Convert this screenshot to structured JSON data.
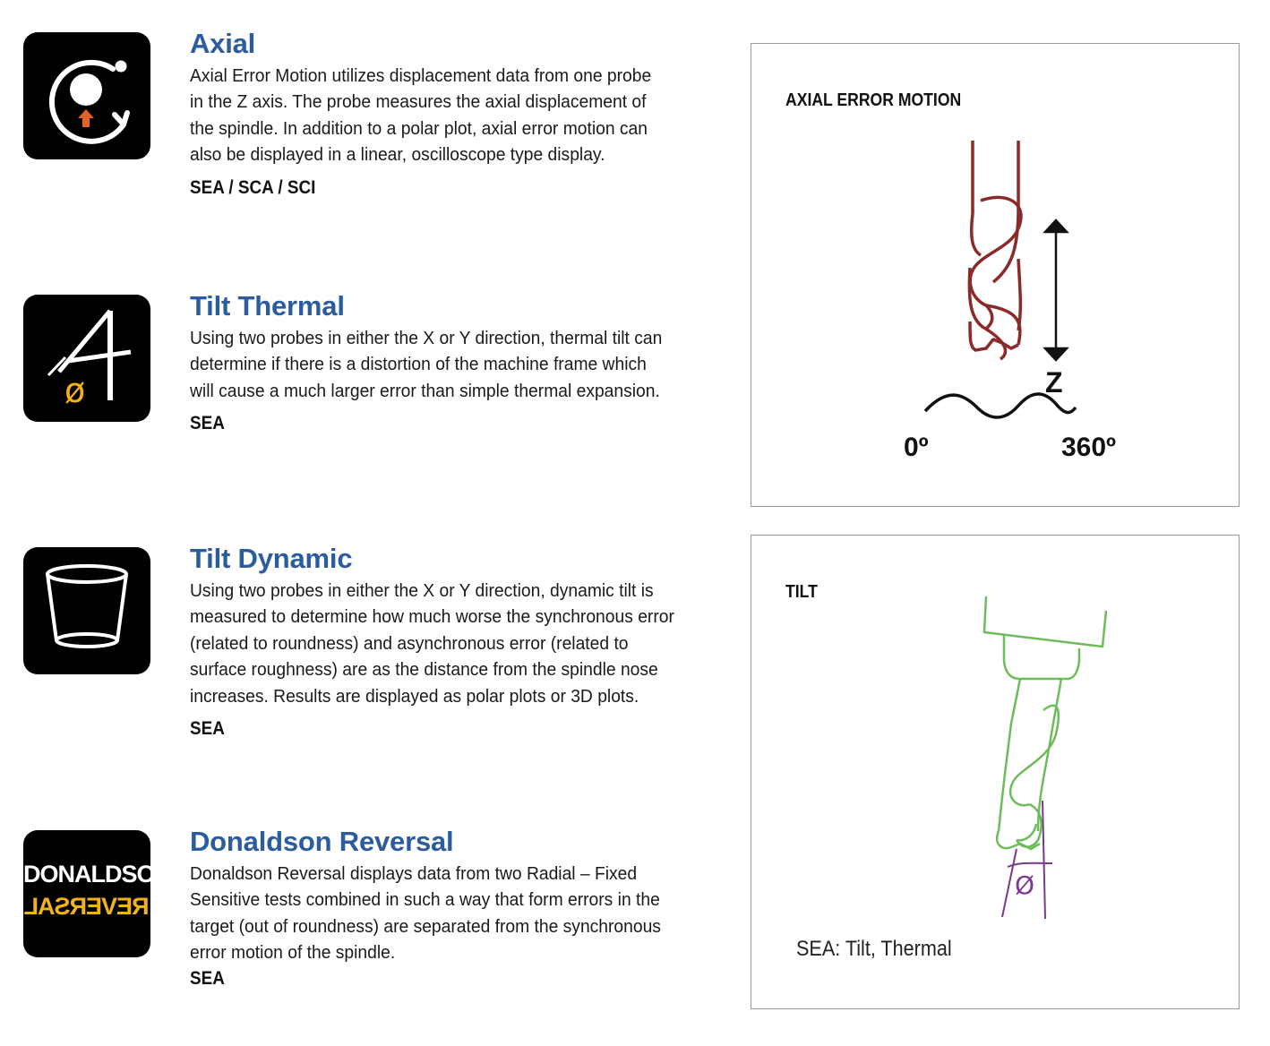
{
  "entries": [
    {
      "title": "Axial",
      "body": "Axial Error Motion utilizes displacement data from one probe in the Z axis. The probe measures the axial displacement of the spindle. In addition to a polar plot, axial error motion can also be displayed in a linear, oscilloscope type display.",
      "codes": "SEA / SCA / SCI",
      "icon": "axial-rotation-icon"
    },
    {
      "title": "Tilt Thermal",
      "body": "Using two probes in either the X or Y direction, thermal tilt can determine if there is a distortion of the machine frame which will cause a much larger error than simple thermal expansion.",
      "codes": "SEA",
      "icon": "tilt-angle-icon"
    },
    {
      "title": "Tilt Dynamic",
      "body": "Using two probes in either the X or Y direction, dynamic tilt is measured to determine how much worse the synchronous error (related to roundness) and asynchronous error (related to surface roughness) are as the distance from the spindle nose increases. Results are displayed as polar plots or 3D plots.",
      "codes": "SEA",
      "icon": "cup-icon"
    },
    {
      "title": "Donaldson Reversal",
      "body": "Donaldson Reversal displays data from two Radial – Fixed Sensitive tests combined in such a way that form errors in the target (out of roundness) are separated from the synchronous error motion of the spindle.",
      "codes": "SEA",
      "icon": "donaldson-reversal-logo",
      "logo_top": "DONALDSON",
      "logo_bottom": "REVERSAL"
    }
  ],
  "panels": {
    "axial": {
      "title": "AXIAL ERROR MOTION",
      "axis_label": "Z",
      "start_label": "0º",
      "end_label": "360º"
    },
    "tilt": {
      "title": "TILT",
      "angle_symbol": "Ø",
      "note": "SEA: Tilt, Thermal"
    }
  },
  "colors": {
    "heading": "#2b5c9e",
    "axial_tool": "#8b2a2a",
    "tilt_tool": "#6dbb5a",
    "tilt_angle": "#7a3a8c",
    "icon_accent_orange": "#e4622a",
    "icon_accent_yellow": "#f2b21c"
  }
}
